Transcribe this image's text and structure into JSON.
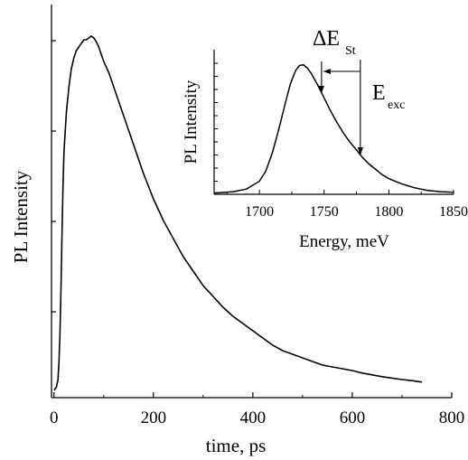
{
  "chart_data": [
    {
      "type": "line",
      "id": "main",
      "title": "",
      "xlabel": "time, ps",
      "ylabel": "PL Intensity",
      "xlim": [
        -5,
        800
      ],
      "ylim": [
        0,
        1.0
      ],
      "xticks": [
        0,
        200,
        400,
        600,
        800
      ],
      "xtick_labels": [
        "0",
        "200",
        "400",
        "600",
        "800"
      ],
      "ytick_labels_shown": false,
      "grid": false,
      "series": [
        {
          "x": [
            0,
            5,
            8,
            10,
            12,
            14,
            16,
            18,
            20,
            25,
            30,
            35,
            40,
            45,
            50,
            55,
            60,
            65,
            70,
            75,
            80,
            85,
            90,
            95,
            100,
            110,
            120,
            130,
            140,
            150,
            160,
            170,
            180,
            190,
            200,
            220,
            240,
            260,
            280,
            300,
            320,
            340,
            360,
            380,
            400,
            420,
            440,
            460,
            480,
            500,
            520,
            540,
            560,
            580,
            600,
            620,
            640,
            660,
            680,
            700,
            720,
            740
          ],
          "y": [
            0.02,
            0.03,
            0.05,
            0.1,
            0.18,
            0.3,
            0.45,
            0.58,
            0.68,
            0.79,
            0.86,
            0.91,
            0.94,
            0.96,
            0.97,
            0.98,
            0.99,
            0.99,
            0.995,
            1.0,
            0.995,
            0.985,
            0.97,
            0.95,
            0.93,
            0.9,
            0.86,
            0.82,
            0.78,
            0.74,
            0.7,
            0.66,
            0.62,
            0.585,
            0.55,
            0.49,
            0.44,
            0.39,
            0.35,
            0.31,
            0.28,
            0.25,
            0.225,
            0.205,
            0.185,
            0.165,
            0.145,
            0.13,
            0.12,
            0.11,
            0.1,
            0.09,
            0.085,
            0.08,
            0.075,
            0.068,
            0.063,
            0.058,
            0.054,
            0.05,
            0.047,
            0.043
          ]
        }
      ]
    },
    {
      "type": "line",
      "id": "inset",
      "title": "",
      "xlabel": "Energy, meV",
      "ylabel": "PL Intensity",
      "xlim": [
        1665,
        1850
      ],
      "ylim": [
        0,
        1.0
      ],
      "xticks": [
        1700,
        1750,
        1800,
        1850
      ],
      "xtick_labels": [
        "1700",
        "1750",
        "1800",
        "1850"
      ],
      "ytick_labels_shown": false,
      "grid": false,
      "series": [
        {
          "x": [
            1665,
            1680,
            1690,
            1700,
            1705,
            1710,
            1715,
            1720,
            1724,
            1728,
            1731,
            1734,
            1737,
            1740,
            1745,
            1750,
            1755,
            1760,
            1765,
            1770,
            1775,
            1780,
            1785,
            1790,
            1795,
            1800,
            1810,
            1820,
            1830,
            1840,
            1850
          ],
          "y": [
            0.01,
            0.02,
            0.04,
            0.1,
            0.18,
            0.32,
            0.5,
            0.7,
            0.85,
            0.95,
            0.99,
            0.995,
            0.97,
            0.93,
            0.84,
            0.74,
            0.64,
            0.55,
            0.47,
            0.4,
            0.34,
            0.28,
            0.23,
            0.19,
            0.15,
            0.12,
            0.08,
            0.05,
            0.03,
            0.02,
            0.015
          ]
        }
      ],
      "annotations": {
        "stokes_shift_label": "ΔE",
        "stokes_shift_subscript": "St",
        "excitation_label": "E",
        "excitation_subscript": "exc",
        "stokes_arrow_x": 1748,
        "excitation_arrow_x": 1778
      }
    }
  ]
}
